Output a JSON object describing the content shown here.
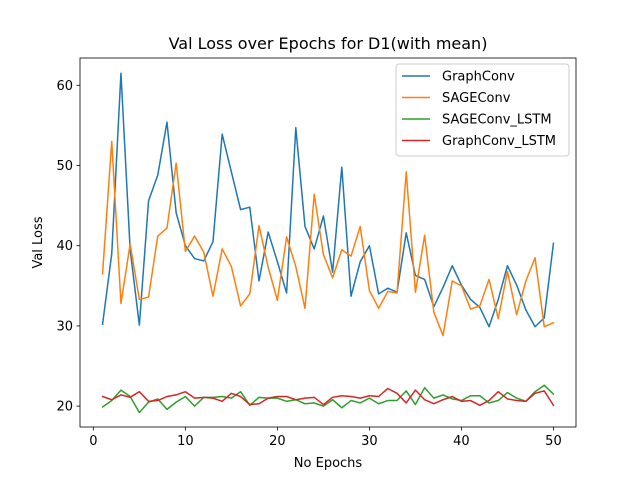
{
  "chart_data": {
    "type": "line",
    "title": "Val Loss over Epochs for D1(with mean)",
    "xlabel": "No Epochs",
    "ylabel": "Val Loss",
    "xlim": [
      -1.45,
      52.45
    ],
    "ylim": [
      17.4,
      63.4
    ],
    "xticks": [
      0,
      10,
      20,
      30,
      40,
      50
    ],
    "yticks": [
      20,
      30,
      40,
      50,
      60
    ],
    "grid": false,
    "legend_position": "top-right",
    "x": [
      1,
      2,
      3,
      4,
      5,
      6,
      7,
      8,
      9,
      10,
      11,
      12,
      13,
      14,
      15,
      16,
      17,
      18,
      19,
      20,
      21,
      22,
      23,
      24,
      25,
      26,
      27,
      28,
      29,
      30,
      31,
      32,
      33,
      34,
      35,
      36,
      37,
      38,
      39,
      40,
      41,
      42,
      43,
      44,
      45,
      46,
      47,
      48,
      49,
      50
    ],
    "series": [
      {
        "name": "GraphConv",
        "color": "#1f77b4",
        "values": [
          30.2,
          39.0,
          61.5,
          39.5,
          30.1,
          45.6,
          48.8,
          55.4,
          44.1,
          40.0,
          38.4,
          38.1,
          40.5,
          53.9,
          49.2,
          44.5,
          44.8,
          35.6,
          41.7,
          38.0,
          34.1,
          54.7,
          42.4,
          39.6,
          43.7,
          36.7,
          49.8,
          33.7,
          38.0,
          40.0,
          34.0,
          34.7,
          34.2,
          41.6,
          36.3,
          35.8,
          32.4,
          34.8,
          37.5,
          35.1,
          33.3,
          32.3,
          29.9,
          33.3,
          37.5,
          35.1,
          32.0,
          29.9,
          31.0,
          40.3
        ]
      },
      {
        "name": "SAGEConv",
        "color": "#ff7f0e",
        "values": [
          36.5,
          53.0,
          32.8,
          40.2,
          33.3,
          33.6,
          41.2,
          42.2,
          50.3,
          39.3,
          41.2,
          39.2,
          33.7,
          39.6,
          37.4,
          32.5,
          34.0,
          42.5,
          37.3,
          33.2,
          41.1,
          37.4,
          32.2,
          46.4,
          38.9,
          36.0,
          39.5,
          38.7,
          42.4,
          34.4,
          32.2,
          34.3,
          34.1,
          49.2,
          34.2,
          41.3,
          31.7,
          28.8,
          35.6,
          35.0,
          32.1,
          32.5,
          35.8,
          30.9,
          36.8,
          31.4,
          35.6,
          38.5,
          29.9,
          30.4
        ]
      },
      {
        "name": "SAGEConv_LSTM",
        "color": "#2ca02c",
        "values": [
          19.9,
          20.7,
          22.0,
          21.2,
          19.2,
          20.5,
          20.9,
          19.6,
          20.5,
          21.2,
          20.0,
          21.1,
          21.1,
          21.2,
          21.0,
          21.8,
          20.1,
          21.1,
          21.0,
          21.0,
          20.6,
          20.8,
          20.3,
          20.4,
          20.0,
          20.8,
          19.8,
          20.7,
          20.4,
          21.0,
          20.3,
          20.7,
          20.7,
          21.9,
          20.2,
          22.3,
          21.0,
          21.4,
          20.9,
          20.7,
          21.3,
          21.3,
          20.4,
          20.7,
          21.7,
          21.0,
          20.6,
          21.8,
          22.6,
          21.5
        ]
      },
      {
        "name": "GraphConv_LSTM",
        "color": "#d62728",
        "values": [
          21.2,
          20.8,
          21.4,
          21.1,
          21.8,
          20.6,
          20.7,
          21.2,
          21.4,
          21.8,
          21.0,
          21.1,
          21.0,
          20.6,
          21.6,
          21.2,
          20.2,
          20.3,
          21.0,
          21.2,
          21.2,
          20.8,
          21.0,
          21.1,
          20.2,
          21.1,
          21.3,
          21.2,
          21.0,
          21.3,
          21.2,
          22.2,
          21.6,
          20.4,
          22.0,
          20.8,
          20.3,
          20.8,
          21.2,
          20.6,
          20.7,
          20.1,
          20.7,
          21.8,
          20.9,
          20.7,
          20.6,
          21.6,
          21.9,
          20.1
        ]
      }
    ]
  }
}
